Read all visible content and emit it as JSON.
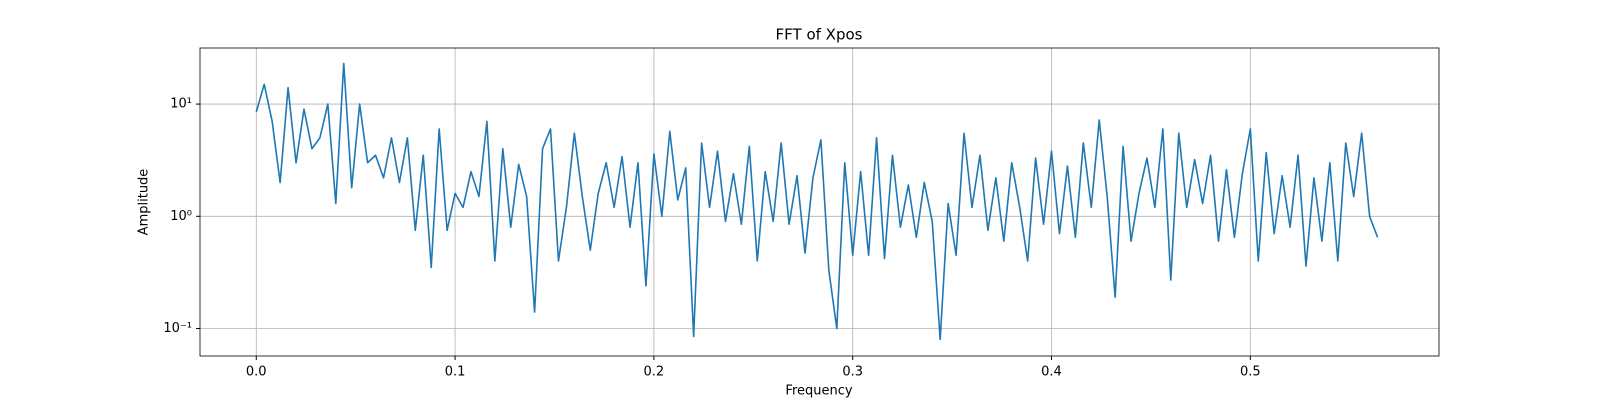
{
  "chart_data": {
    "type": "line",
    "title": "FFT of Xpos",
    "x_label": "Frequency",
    "y_label": "Amplitude",
    "log_y": true,
    "grid": true,
    "xlim": [
      -0.0283,
      0.5949
    ],
    "ylim": [
      0.0569,
      31.6
    ],
    "xticks": [
      {
        "value": 0,
        "label": "0.0"
      },
      0.1,
      0.2,
      0.3,
      0.4,
      0.5
    ],
    "yticks": [
      {
        "value": 0.1,
        "label": "10⁻¹"
      },
      {
        "value": 1,
        "label": "10⁰"
      },
      {
        "value": 10,
        "label": "10¹"
      }
    ],
    "x": [
      0,
      0.004,
      0.008,
      0.012,
      0.016,
      0.02,
      0.024,
      0.028,
      0.032,
      0.036,
      0.04,
      0.044,
      0.048,
      0.052,
      0.056,
      0.06,
      0.064,
      0.068,
      0.072,
      0.076,
      0.08,
      0.084,
      0.088,
      0.092,
      0.096,
      0.1,
      0.104,
      0.108,
      0.112,
      0.116,
      0.12,
      0.124,
      0.128,
      0.132,
      0.136,
      0.14,
      0.144,
      0.148,
      0.152,
      0.156,
      0.16,
      0.164,
      0.168,
      0.172,
      0.176,
      0.18,
      0.184,
      0.188,
      0.192,
      0.196,
      0.2,
      0.204,
      0.208,
      0.212,
      0.216,
      0.22,
      0.224,
      0.228,
      0.232,
      0.236,
      0.24,
      0.244,
      0.248,
      0.252,
      0.256,
      0.26,
      0.264,
      0.268,
      0.272,
      0.276,
      0.28,
      0.284,
      0.288,
      0.292,
      0.296,
      0.3,
      0.304,
      0.308,
      0.312,
      0.316,
      0.32,
      0.324,
      0.328,
      0.332,
      0.336,
      0.34,
      0.344,
      0.348,
      0.352,
      0.356,
      0.36,
      0.364,
      0.368,
      0.372,
      0.376,
      0.38,
      0.384,
      0.388,
      0.392,
      0.396,
      0.4,
      0.404,
      0.408,
      0.412,
      0.416,
      0.42,
      0.424,
      0.428,
      0.432,
      0.436,
      0.44,
      0.444,
      0.448,
      0.452,
      0.456,
      0.46,
      0.464,
      0.468,
      0.472,
      0.476,
      0.48,
      0.484,
      0.488,
      0.492,
      0.496,
      0.5,
      0.504,
      0.508,
      0.512,
      0.516,
      0.52,
      0.524,
      0.528,
      0.532,
      0.536,
      0.54,
      0.544,
      0.548,
      0.552,
      0.556,
      0.56,
      0.564
    ],
    "series": [
      {
        "color": "#1f77b4",
        "values": [
          8.5,
          15,
          7,
          2,
          14,
          3,
          9,
          4,
          5,
          10,
          1.3,
          23,
          1.8,
          10,
          3,
          3.5,
          2.2,
          5,
          2,
          5,
          0.75,
          3.5,
          0.35,
          6,
          0.75,
          1.6,
          1.2,
          2.5,
          1.5,
          7,
          0.4,
          4,
          0.8,
          2.9,
          1.5,
          0.14,
          4,
          6,
          0.4,
          1.2,
          5.5,
          1.5,
          0.5,
          1.6,
          3,
          1.2,
          3.4,
          0.8,
          3,
          0.24,
          3.6,
          1,
          5.7,
          1.4,
          2.7,
          0.085,
          4.5,
          1.2,
          3.8,
          0.9,
          2.4,
          0.85,
          4.2,
          0.4,
          2.5,
          0.9,
          4.5,
          0.85,
          2.3,
          0.47,
          2.2,
          4.8,
          0.33,
          0.1,
          3,
          0.45,
          2.5,
          0.45,
          5,
          0.42,
          3.5,
          0.8,
          1.9,
          0.65,
          2,
          0.9,
          0.08,
          1.3,
          0.45,
          5.5,
          1.2,
          3.5,
          0.75,
          2.2,
          0.6,
          3,
          1.2,
          0.4,
          3.3,
          0.85,
          3.8,
          0.7,
          2.8,
          0.65,
          4.5,
          1.2,
          7.2,
          1.5,
          0.19,
          4.2,
          0.6,
          1.6,
          3.3,
          1.2,
          6,
          0.27,
          5.5,
          1.2,
          3.2,
          1.3,
          3.5,
          0.6,
          2.6,
          0.65,
          2.4,
          6,
          0.4,
          3.7,
          0.7,
          2.3,
          0.8,
          3.5,
          0.36,
          2.2,
          0.6,
          3,
          0.4,
          4.5,
          1.5,
          5.5,
          1,
          0.65
        ]
      }
    ]
  }
}
